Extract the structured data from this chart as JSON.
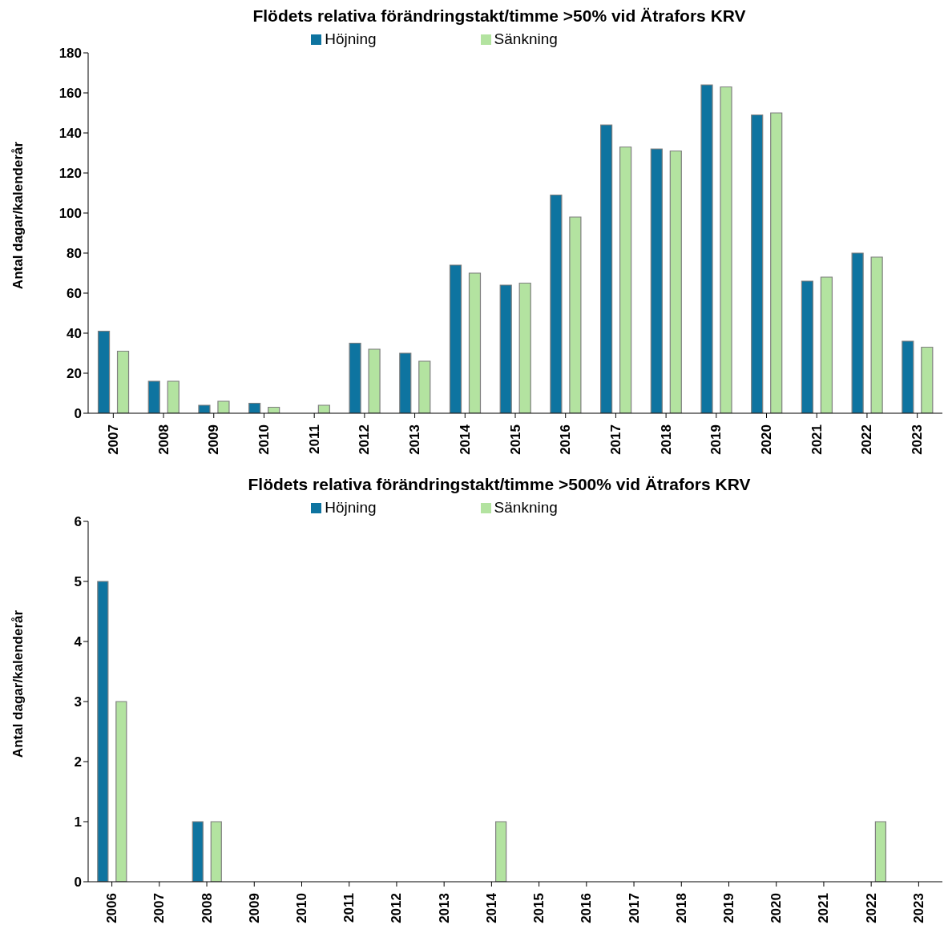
{
  "chart_data": [
    {
      "type": "bar",
      "title": "Flödets relativa förändringstakt/timme >50% vid Ätrafors KRV",
      "ylabel": "Antal dagar/kalenderår",
      "categories": [
        "2007",
        "2008",
        "2009",
        "2010",
        "2011",
        "2012",
        "2013",
        "2014",
        "2015",
        "2016",
        "2017",
        "2018",
        "2019",
        "2020",
        "2021",
        "2022",
        "2023"
      ],
      "series": [
        {
          "name": "Höjning",
          "color": "#0e74a0",
          "values": [
            41,
            16,
            4,
            5,
            0,
            35,
            30,
            74,
            64,
            109,
            144,
            132,
            164,
            149,
            66,
            80,
            36
          ]
        },
        {
          "name": "Sänkning",
          "color": "#b3e3a0",
          "values": [
            31,
            16,
            6,
            3,
            4,
            32,
            26,
            70,
            65,
            98,
            133,
            131,
            163,
            150,
            68,
            78,
            33
          ]
        }
      ],
      "ylim": [
        0,
        180
      ],
      "yticks": [
        0,
        20,
        40,
        60,
        80,
        100,
        120,
        140,
        160,
        180
      ],
      "grid": false,
      "legend": "top"
    },
    {
      "type": "bar",
      "title": "Flödets relativa förändringstakt/timme >500% vid Ätrafors KRV",
      "ylabel": "Antal dagar/kalenderår",
      "categories": [
        "2006",
        "2007",
        "2008",
        "2009",
        "2010",
        "2011",
        "2012",
        "2013",
        "2014",
        "2015",
        "2016",
        "2017",
        "2018",
        "2019",
        "2020",
        "2021",
        "2022",
        "2023"
      ],
      "series": [
        {
          "name": "Höjning",
          "color": "#0e74a0",
          "values": [
            5,
            0,
            1,
            0,
            0,
            0,
            0,
            0,
            0,
            0,
            0,
            0,
            0,
            0,
            0,
            0,
            0,
            0
          ]
        },
        {
          "name": "Sänkning",
          "color": "#b3e3a0",
          "values": [
            3,
            0,
            1,
            0,
            0,
            0,
            0,
            0,
            1,
            0,
            0,
            0,
            0,
            0,
            0,
            0,
            1,
            0
          ]
        }
      ],
      "ylim": [
        0,
        6
      ],
      "yticks": [
        0,
        1,
        2,
        3,
        4,
        5,
        6
      ],
      "grid": false,
      "legend": "top"
    }
  ]
}
